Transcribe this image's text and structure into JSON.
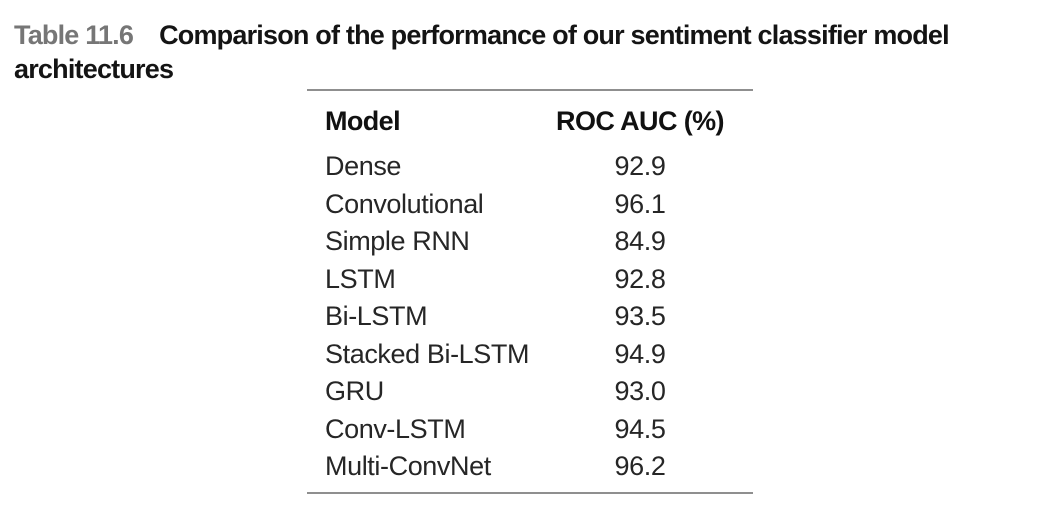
{
  "caption": {
    "label": "Table 11.6",
    "text": "Comparison of the performance of our sentiment classifier model architectures"
  },
  "table": {
    "columns": [
      "Model",
      "ROC AUC (%)"
    ],
    "rows": [
      {
        "model": "Dense",
        "roc_auc": "92.9"
      },
      {
        "model": "Convolutional",
        "roc_auc": "96.1"
      },
      {
        "model": "Simple RNN",
        "roc_auc": "84.9"
      },
      {
        "model": "LSTM",
        "roc_auc": "92.8"
      },
      {
        "model": "Bi-LSTM",
        "roc_auc": "93.5"
      },
      {
        "model": "Stacked Bi-LSTM",
        "roc_auc": "94.9"
      },
      {
        "model": "GRU",
        "roc_auc": "93.0"
      },
      {
        "model": "Conv-LSTM",
        "roc_auc": "94.5"
      },
      {
        "model": "Multi-ConvNet",
        "roc_auc": "96.2"
      }
    ]
  },
  "colors": {
    "caption_label_gray": "#767676",
    "text_black": "#141414",
    "body_text": "#262626",
    "rule_gray": "#8f8f8f",
    "background": "#ffffff"
  }
}
